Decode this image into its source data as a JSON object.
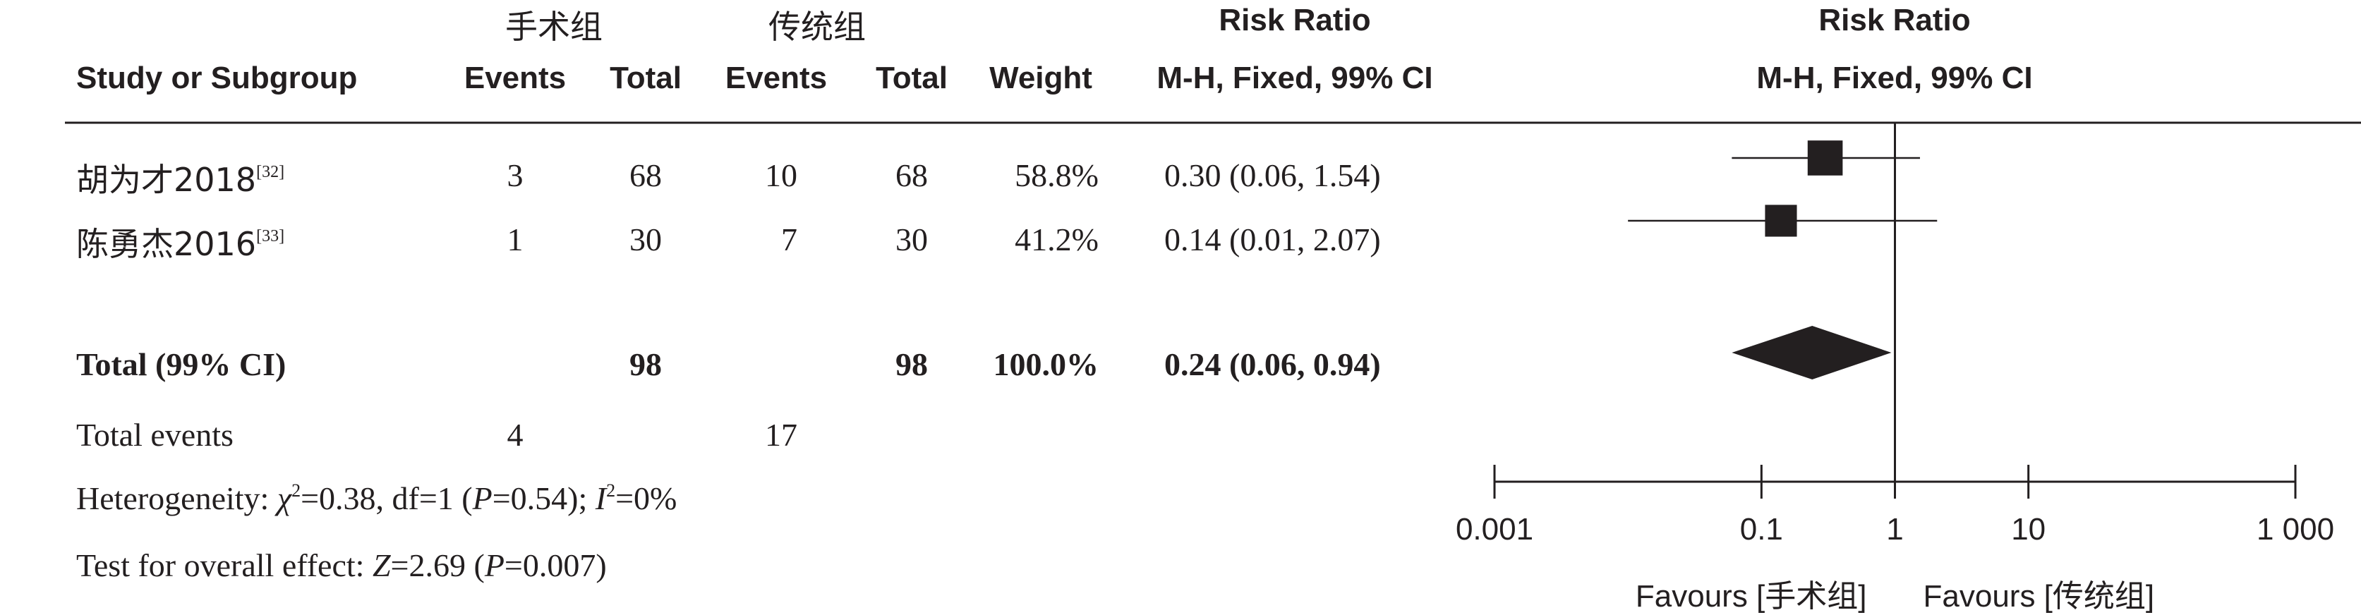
{
  "chart_data": {
    "type": "forest",
    "header": {
      "group1": "手术组",
      "group2": "传统组",
      "study_col": "Study or Subgroup",
      "events": "Events",
      "total": "Total",
      "weight": "Weight",
      "rr_title": "Risk Ratio",
      "rr_method": "M-H, Fixed, 99% CI",
      "plot_title": "Risk Ratio",
      "plot_method": "M-H, Fixed, 99% CI"
    },
    "studies": [
      {
        "name": "胡为才2018",
        "ref": "[32]",
        "e1": "3",
        "n1": "68",
        "e2": "10",
        "n2": "68",
        "weight": "58.8%",
        "ci_text": "0.30 (0.06, 1.54)",
        "rr": 0.3,
        "lo": 0.06,
        "hi": 1.54,
        "w": 58.8
      },
      {
        "name": "陈勇杰2016",
        "ref": "[33]",
        "e1": "1",
        "n1": "30",
        "e2": "7",
        "n2": "30",
        "weight": "41.2%",
        "ci_text": "0.14 (0.01, 2.07)",
        "rr": 0.14,
        "lo": 0.01,
        "hi": 2.07,
        "w": 41.2
      }
    ],
    "total": {
      "label": "Total (99% CI)",
      "n1": "98",
      "n2": "98",
      "weight": "100.0%",
      "ci_text": "0.24 (0.06, 0.94)",
      "rr": 0.24,
      "lo": 0.06,
      "hi": 0.94
    },
    "total_events": {
      "label": "Total events",
      "e1": "4",
      "e2": "17"
    },
    "heterogeneity": {
      "prefix": "Heterogeneity: ",
      "chi": "χ",
      "chi_sup": "2",
      "chi_val": "=0.38, df=1 (",
      "p": "P",
      "p_val": "=0.54); ",
      "i": "I",
      "i_sup": "2",
      "i_val": "=0%"
    },
    "overall": {
      "prefix": "Test for overall effect: ",
      "z": "Z",
      "z_val": "=2.69 (",
      "p": "P",
      "p_val": "=0.007)"
    },
    "axis": {
      "scale": "log",
      "range": [
        0.001,
        1000
      ],
      "ticks": [
        0.001,
        0.1,
        1,
        10,
        1000
      ],
      "tick_labels": [
        "0.001",
        "0.1",
        "1",
        "10",
        "1 000"
      ],
      "favours_left": "Favours [手术组]",
      "favours_right": "Favours [传统组]"
    }
  }
}
